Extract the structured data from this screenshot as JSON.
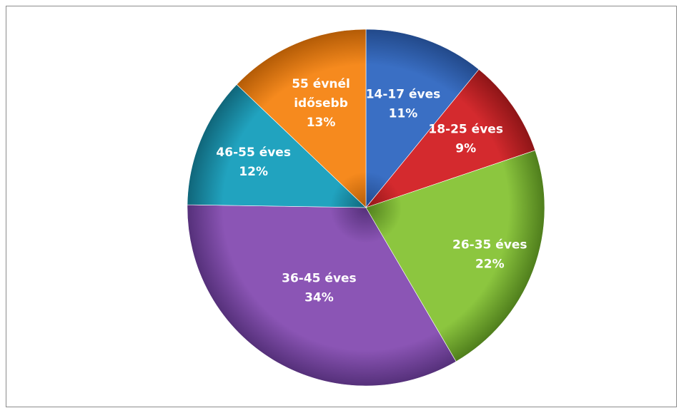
{
  "chart_data": {
    "type": "pie",
    "title": "",
    "slices": [
      {
        "lines": [
          "14-17 éves",
          "11%"
        ],
        "value": 11,
        "color": "#3a6fc4",
        "edge": "#22498a"
      },
      {
        "lines": [
          "18-25 éves",
          "9%"
        ],
        "value": 9,
        "color": "#d42a2e",
        "edge": "#8e1517"
      },
      {
        "lines": [
          "26-35 éves",
          "22%"
        ],
        "value": 22,
        "color": "#8cc63f",
        "edge": "#4f7e1c"
      },
      {
        "lines": [
          "36-45 éves",
          "34%"
        ],
        "value": 34,
        "color": "#8b55b5",
        "edge": "#55307a"
      },
      {
        "lines": [
          "46-55 éves",
          "12%"
        ],
        "value": 12,
        "color": "#21a3bf",
        "edge": "#10667a"
      },
      {
        "lines": [
          "55 évnél",
          "idősebb",
          "13%"
        ],
        "value": 13,
        "color": "#f68a1e",
        "edge": "#b35b06"
      }
    ],
    "start_angle_deg": 0,
    "direction": "clockwise",
    "label_color": "#ffffff",
    "legend": "none"
  }
}
